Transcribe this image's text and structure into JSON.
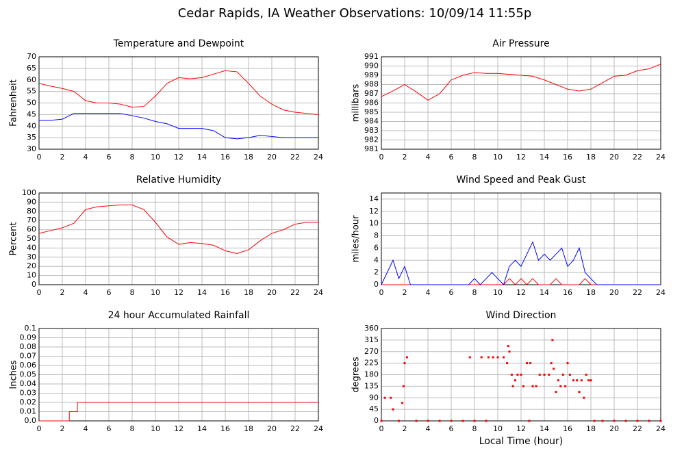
{
  "title": "Cedar Rapids, IA Weather Observations: 10/09/14 11:55p",
  "chart_data": [
    {
      "type": "line",
      "title": "Temperature and Dewpoint",
      "ylabel": "Fahrenheit",
      "x": [
        0,
        1,
        2,
        3,
        4,
        5,
        6,
        7,
        8,
        9,
        10,
        11,
        12,
        13,
        14,
        15,
        16,
        17,
        18,
        19,
        20,
        21,
        22,
        23,
        24
      ],
      "series": [
        {
          "color": "#ff0000",
          "values": [
            58.5,
            57.3,
            56.3,
            55,
            51,
            50,
            50,
            49.5,
            48.2,
            48.5,
            53,
            58.5,
            61,
            60.5,
            61,
            62.5,
            64,
            63.5,
            58.5,
            53,
            49.5,
            47,
            46,
            45.5,
            45
          ]
        },
        {
          "color": "#0000ff",
          "values": [
            42.5,
            42.5,
            43,
            45.5,
            45.5,
            45.5,
            45.5,
            45.5,
            44.5,
            43.5,
            42,
            41,
            39,
            39,
            39,
            38,
            35,
            34.5,
            35,
            36,
            35.5,
            35,
            35,
            35,
            35
          ]
        }
      ],
      "xlim": [
        0,
        24
      ],
      "xticks": [
        0,
        2,
        4,
        6,
        8,
        10,
        12,
        14,
        16,
        18,
        20,
        22,
        24
      ],
      "ylim": [
        30,
        70
      ],
      "yticks": [
        30,
        35,
        40,
        45,
        50,
        55,
        60,
        65,
        70
      ],
      "grid": true
    },
    {
      "type": "line",
      "title": "Air Pressure",
      "ylabel": "millibars",
      "x": [
        0,
        1,
        2,
        3,
        4,
        5,
        6,
        7,
        8,
        9,
        10,
        11,
        12,
        13,
        14,
        15,
        16,
        17,
        18,
        19,
        20,
        21,
        22,
        23,
        24
      ],
      "series": [
        {
          "color": "#ff0000",
          "values": [
            986.7,
            987.3,
            988,
            987.2,
            986.3,
            987,
            988.5,
            989,
            989.3,
            989.2,
            989.2,
            989.1,
            989,
            988.9,
            988.5,
            988,
            987.5,
            987.3,
            987.5,
            988.2,
            988.9,
            989,
            989.5,
            989.7,
            990.2
          ]
        }
      ],
      "xlim": [
        0,
        24
      ],
      "xticks": [
        0,
        2,
        4,
        6,
        8,
        10,
        12,
        14,
        16,
        18,
        20,
        22,
        24
      ],
      "ylim": [
        981,
        991
      ],
      "yticks": [
        981,
        982,
        983,
        984,
        985,
        986,
        987,
        988,
        989,
        990,
        991
      ],
      "grid": true
    },
    {
      "type": "line",
      "title": "Relative Humidity",
      "ylabel": "Percent",
      "x": [
        0,
        1,
        2,
        3,
        4,
        5,
        6,
        7,
        8,
        9,
        10,
        11,
        12,
        13,
        14,
        15,
        16,
        17,
        18,
        19,
        20,
        21,
        22,
        23,
        24
      ],
      "series": [
        {
          "color": "#ff0000",
          "values": [
            56,
            59,
            62,
            67,
            82,
            85,
            86,
            87,
            87,
            82,
            68,
            52,
            44,
            46,
            45,
            43,
            37,
            34,
            38,
            48,
            56,
            60,
            66,
            68,
            68
          ]
        }
      ],
      "xlim": [
        0,
        24
      ],
      "xticks": [
        0,
        2,
        4,
        6,
        8,
        10,
        12,
        14,
        16,
        18,
        20,
        22,
        24
      ],
      "ylim": [
        0,
        100
      ],
      "yticks": [
        0,
        10,
        20,
        30,
        40,
        50,
        60,
        70,
        80,
        90,
        100
      ],
      "grid": true
    },
    {
      "type": "line",
      "title": "Wind Speed and Peak Gust",
      "ylabel": "miles/hour",
      "x": [
        0,
        0.5,
        1,
        1.5,
        2,
        2.5,
        3,
        3.5,
        4,
        4.5,
        5,
        5.5,
        6,
        6.5,
        7,
        7.5,
        8,
        8.5,
        9,
        9.5,
        10,
        10.5,
        11,
        11.5,
        12,
        12.5,
        13,
        13.5,
        14,
        14.5,
        15,
        15.5,
        16,
        16.5,
        17,
        17.5,
        18,
        18.5,
        19,
        19.5,
        20,
        20.5,
        21,
        21.5,
        22,
        22.5,
        23,
        23.5,
        24
      ],
      "series": [
        {
          "color": "#ff0000",
          "values": [
            0,
            0,
            0,
            0,
            0,
            0,
            0,
            0,
            0,
            0,
            0,
            0,
            0,
            0,
            0,
            0,
            0,
            0,
            0,
            0,
            0,
            0,
            1,
            0,
            1,
            0,
            1,
            0,
            0,
            0,
            1,
            0,
            0,
            0,
            0,
            1,
            0,
            0,
            0,
            0,
            0,
            0,
            0,
            0,
            0,
            0,
            0,
            0,
            0
          ]
        },
        {
          "color": "#0000ff",
          "values": [
            0,
            2,
            4,
            1,
            3,
            0,
            0,
            0,
            0,
            0,
            0,
            0,
            0,
            0,
            0,
            0,
            1,
            0,
            1,
            2,
            1,
            0,
            3,
            4,
            3,
            5,
            7,
            4,
            5,
            4,
            5,
            6,
            3,
            4,
            6,
            2,
            1,
            0,
            0,
            0,
            0,
            0,
            0,
            0,
            0,
            0,
            0,
            0,
            0
          ]
        }
      ],
      "xlim": [
        0,
        24
      ],
      "xticks": [
        0,
        2,
        4,
        6,
        8,
        10,
        12,
        14,
        16,
        18,
        20,
        22,
        24
      ],
      "ylim": [
        0,
        15
      ],
      "yticks": [
        0,
        2,
        4,
        6,
        8,
        10,
        12,
        14
      ],
      "grid": true
    },
    {
      "type": "line",
      "title": "24 hour Accumulated Rainfall",
      "ylabel": "Inches",
      "x": [
        0,
        2.6,
        2.6,
        3.3,
        3.3,
        24
      ],
      "series": [
        {
          "color": "#ff0000",
          "values": [
            0,
            0,
            0.01,
            0.01,
            0.02,
            0.02
          ]
        }
      ],
      "xlim": [
        0,
        24
      ],
      "xticks": [
        0,
        2,
        4,
        6,
        8,
        10,
        12,
        14,
        16,
        18,
        20,
        22,
        24
      ],
      "ylim": [
        0,
        0.1
      ],
      "yticks": [
        {
          "value": 0,
          "label": "0.0"
        },
        0.01,
        0.02,
        0.03,
        0.04,
        0.05,
        0.06,
        0.07,
        0.08,
        0.09,
        0.1
      ],
      "grid": true
    },
    {
      "type": "scatter",
      "title": "Wind Direction",
      "ylabel": "degrees",
      "xlabel": "Local Time (hour)",
      "x": [
        0,
        0.3,
        0.8,
        1,
        1.5,
        1.8,
        1.9,
        2,
        2.2,
        3,
        4,
        5,
        6,
        7,
        7.6,
        8,
        8.6,
        9,
        9.2,
        9.6,
        10,
        10.5,
        10.8,
        10.9,
        11,
        11.2,
        11.3,
        11.5,
        11.7,
        12,
        12.2,
        12.5,
        12.7,
        12.8,
        13,
        13.3,
        13.6,
        14,
        14.4,
        14.6,
        14.7,
        14.8,
        15,
        15.2,
        15.4,
        15.6,
        15.8,
        16,
        16.2,
        16.5,
        16.8,
        17,
        17.2,
        17.4,
        17.6,
        17.8,
        18,
        18.3,
        19,
        20,
        21,
        22,
        23,
        24
      ],
      "series": [
        {
          "color": "#ff0000",
          "values": [
            0,
            90,
            90,
            45,
            0,
            70,
            135,
            225,
            248,
            0,
            0,
            0,
            0,
            0,
            248,
            0,
            248,
            0,
            248,
            248,
            248,
            248,
            225,
            292,
            270,
            180,
            135,
            158,
            180,
            180,
            135,
            225,
            0,
            225,
            135,
            135,
            180,
            180,
            180,
            225,
            315,
            203,
            113,
            158,
            135,
            180,
            135,
            225,
            180,
            158,
            158,
            113,
            158,
            90,
            180,
            158,
            158,
            0,
            0,
            0,
            0,
            0,
            0,
            0
          ]
        }
      ],
      "xlim": [
        0,
        24
      ],
      "xticks": [
        0,
        2,
        4,
        6,
        8,
        10,
        12,
        14,
        16,
        18,
        20,
        22,
        24
      ],
      "ylim": [
        0,
        360
      ],
      "yticks": [
        0,
        45,
        90,
        135,
        180,
        225,
        270,
        315,
        360
      ],
      "grid": true
    }
  ]
}
